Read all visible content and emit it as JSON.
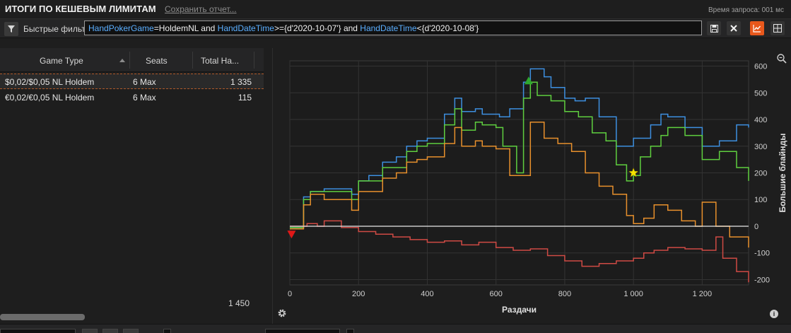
{
  "header": {
    "title": "ИТОГИ ПО КЕШЕВЫМ ЛИМИТАМ",
    "save_link": "Сохранить отчет...",
    "query_time": "Время запроса: 001 мс"
  },
  "filter": {
    "label": "Быстрые фильт",
    "query_parts": [
      {
        "t": "HandPokerGame",
        "k": true
      },
      {
        "t": "=HoldemNL and ",
        "k": false
      },
      {
        "t": "HandDateTime",
        "k": true
      },
      {
        "t": ">={d'2020-10-07'} and ",
        "k": false
      },
      {
        "t": "HandDateTime",
        "k": true
      },
      {
        "t": "<{d'2020-10-08'}",
        "k": false
      }
    ],
    "buttons": [
      "save-icon",
      "clear-icon",
      "chart-icon",
      "layout-icon"
    ]
  },
  "table": {
    "columns": [
      "Game Type",
      "Seats",
      "Total Ha..."
    ],
    "rows": [
      {
        "game": "$0,02/$0,05 NL Holdem",
        "seats": "6 Max",
        "hands": "1 335"
      },
      {
        "game": "€0,02/€0,05 NL Holdem",
        "seats": "6 Max",
        "hands": "115"
      }
    ],
    "total_hands": "1 450"
  },
  "chart_data": {
    "type": "line",
    "xlabel": "Раздачи",
    "ylabel": "Большие блайнды",
    "xlim": [
      0,
      1335
    ],
    "ylim": [
      -220,
      620
    ],
    "x_ticks": [
      0,
      200,
      400,
      600,
      800,
      1000,
      1200
    ],
    "x_tick_labels": [
      "0",
      "200",
      "400",
      "600",
      "800",
      "1 000",
      "1 200"
    ],
    "y_ticks": [
      600,
      500,
      400,
      300,
      200,
      100,
      0,
      -100,
      -200
    ],
    "y_tick_labels": [
      "600",
      "500",
      "400",
      "300",
      "200",
      "100",
      "0",
      "-100",
      "-200"
    ],
    "grid": true,
    "series": [
      {
        "color": "#3d8fe0",
        "x": [
          0,
          40,
          60,
          100,
          180,
          200,
          230,
          270,
          310,
          340,
          370,
          400,
          450,
          480,
          500,
          540,
          560,
          610,
          640,
          680,
          700,
          740,
          760,
          800,
          830,
          860,
          900,
          950,
          980,
          1000,
          1050,
          1080,
          1100,
          1150,
          1200,
          1250,
          1300,
          1335
        ],
        "y": [
          -5,
          110,
          130,
          140,
          120,
          170,
          190,
          240,
          260,
          300,
          320,
          330,
          420,
          480,
          430,
          440,
          420,
          410,
          440,
          540,
          590,
          560,
          520,
          480,
          470,
          480,
          410,
          300,
          300,
          330,
          380,
          420,
          410,
          370,
          300,
          320,
          380,
          370
        ]
      },
      {
        "color": "#5fcf3f",
        "x": [
          0,
          40,
          60,
          100,
          180,
          200,
          230,
          270,
          310,
          340,
          370,
          400,
          450,
          480,
          500,
          540,
          560,
          600,
          620,
          660,
          680,
          700,
          720,
          760,
          800,
          840,
          880,
          920,
          950,
          980,
          1000,
          1020,
          1050,
          1080,
          1100,
          1150,
          1200,
          1250,
          1300,
          1335
        ],
        "y": [
          -5,
          100,
          130,
          130,
          100,
          170,
          170,
          220,
          220,
          280,
          300,
          310,
          380,
          440,
          360,
          390,
          380,
          370,
          300,
          200,
          480,
          540,
          490,
          470,
          430,
          410,
          350,
          320,
          230,
          170,
          190,
          260,
          300,
          340,
          370,
          340,
          250,
          280,
          220,
          170
        ]
      },
      {
        "color": "#e8902c",
        "x": [
          0,
          40,
          60,
          100,
          180,
          200,
          230,
          270,
          310,
          340,
          370,
          400,
          450,
          480,
          500,
          540,
          560,
          600,
          640,
          680,
          700,
          740,
          780,
          820,
          860,
          900,
          940,
          980,
          1000,
          1030,
          1060,
          1100,
          1140,
          1180,
          1200,
          1240,
          1280,
          1335
        ],
        "y": [
          -10,
          80,
          120,
          100,
          60,
          130,
          130,
          180,
          200,
          240,
          250,
          260,
          310,
          370,
          300,
          320,
          300,
          290,
          190,
          190,
          390,
          330,
          310,
          280,
          200,
          150,
          120,
          40,
          10,
          30,
          80,
          60,
          20,
          0,
          90,
          0,
          -40,
          -80
        ]
      },
      {
        "color": "#cf4a44",
        "x": [
          0,
          50,
          80,
          100,
          150,
          200,
          250,
          300,
          350,
          400,
          450,
          500,
          550,
          600,
          650,
          700,
          750,
          800,
          850,
          900,
          950,
          1000,
          1030,
          1060,
          1100,
          1150,
          1200,
          1240,
          1260,
          1300,
          1335
        ],
        "y": [
          0,
          10,
          0,
          20,
          -5,
          -20,
          -30,
          -40,
          -50,
          -60,
          -55,
          -70,
          -60,
          -80,
          -90,
          -85,
          -110,
          -130,
          -150,
          -140,
          -130,
          -120,
          -100,
          -90,
          -80,
          -85,
          -90,
          -40,
          -120,
          -170,
          -210
        ]
      },
      {
        "color": "#e8e8e8",
        "x": [
          0,
          1335
        ],
        "y": [
          0,
          0
        ]
      }
    ],
    "markers": [
      {
        "shape": "triangle-up",
        "color": "#2ea82e",
        "x": 695,
        "y": 545
      },
      {
        "shape": "triangle-down",
        "color": "#e01818",
        "x": 5,
        "y": -30
      },
      {
        "shape": "star",
        "color": "#f5e200",
        "x": 1000,
        "y": 200
      }
    ]
  }
}
